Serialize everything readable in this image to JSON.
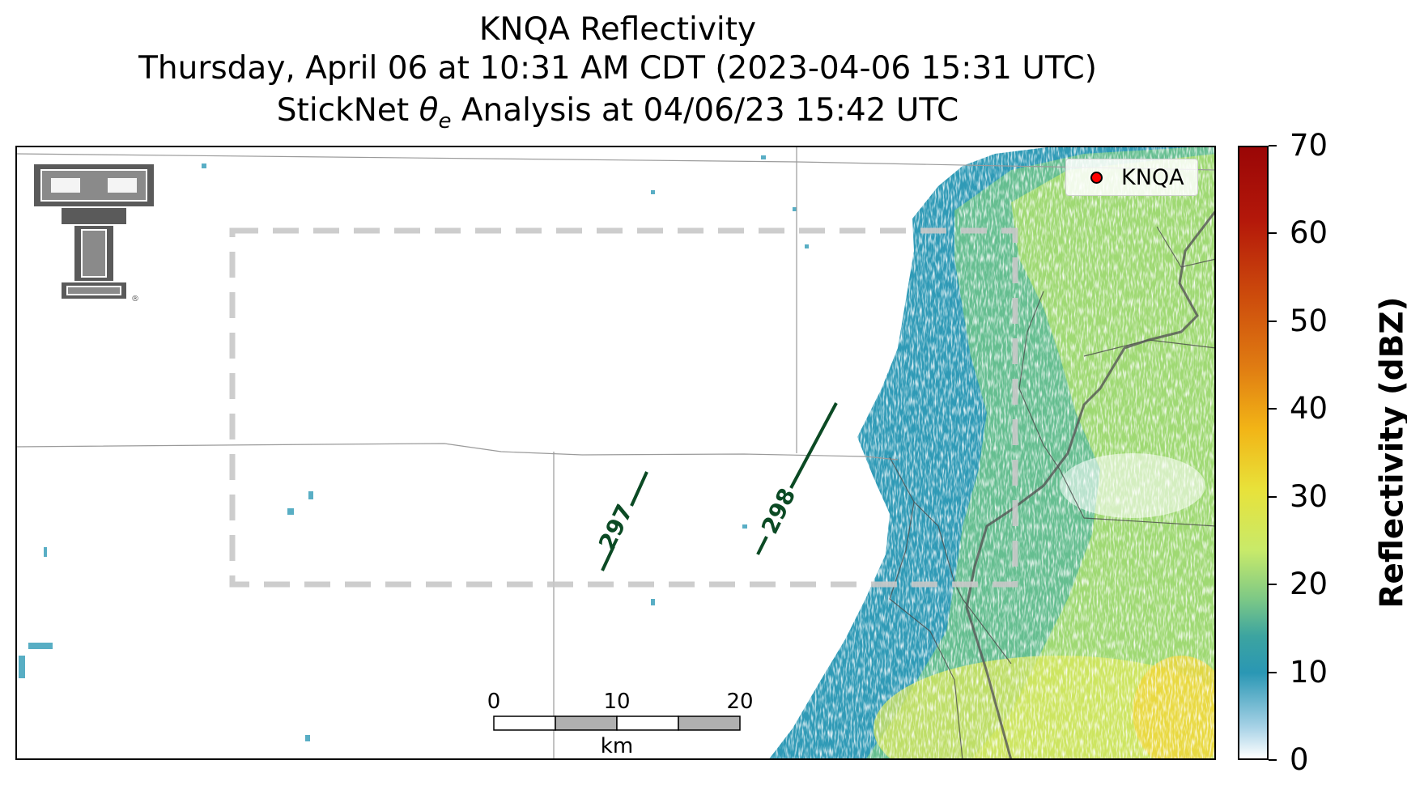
{
  "title": {
    "line1": "KNQA Reflectivity",
    "line2": "Thursday, April 06 at 10:31 AM CDT (2023-04-06 15:31 UTC)",
    "line3_prefix": "StickNet ",
    "line3_symbol": "θ",
    "line3_subscript": "e",
    "line3_suffix": " Analysis at 04/06/23 15:42 UTC"
  },
  "legend": {
    "label": "KNQA",
    "marker_color": "#ff0000"
  },
  "contours": [
    {
      "label": "297"
    },
    {
      "label": "298"
    }
  ],
  "contour_color": "#0b4a24",
  "scalebar": {
    "ticks": [
      "0",
      "10",
      "20"
    ],
    "unit": "km"
  },
  "colorbar": {
    "label": "Reflectivity (dBZ)",
    "min": 0,
    "max": 70,
    "ticks": [
      "0",
      "10",
      "20",
      "30",
      "40",
      "50",
      "60",
      "70"
    ],
    "colors": [
      "#ffffff",
      "#2a97b4",
      "#7cc886",
      "#e8e23a",
      "#e07c12",
      "#9a0606"
    ]
  },
  "logo": {
    "name": "double-T-logo",
    "registered": "®",
    "color": "#5a5a5a"
  },
  "analysis_box": {
    "style": "dashed",
    "color": "#c8c8c8"
  }
}
